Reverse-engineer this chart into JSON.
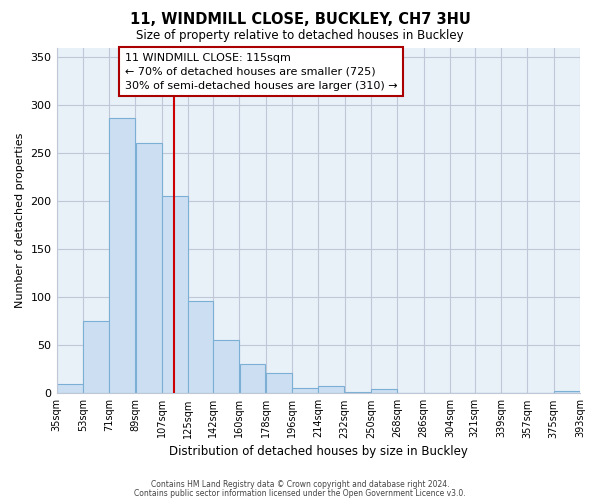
{
  "title": "11, WINDMILL CLOSE, BUCKLEY, CH7 3HU",
  "subtitle": "Size of property relative to detached houses in Buckley",
  "xlabel": "Distribution of detached houses by size in Buckley",
  "ylabel": "Number of detached properties",
  "bar_edges": [
    35,
    53,
    71,
    89,
    107,
    125,
    142,
    160,
    178,
    196,
    214,
    232,
    250,
    268,
    286,
    304,
    321,
    339,
    357,
    375,
    393
  ],
  "bar_values": [
    10,
    75,
    287,
    261,
    205,
    96,
    55,
    31,
    21,
    6,
    8,
    1,
    4,
    0,
    0,
    0,
    0,
    0,
    0,
    2
  ],
  "bar_color": "#ccdff2",
  "bar_edge_color": "#7bafd4",
  "plot_bg_color": "#e8f0f8",
  "vline_x": 115,
  "vline_color": "#cc0000",
  "ylim": [
    0,
    360
  ],
  "yticks": [
    0,
    50,
    100,
    150,
    200,
    250,
    300,
    350
  ],
  "tick_labels": [
    "35sqm",
    "53sqm",
    "71sqm",
    "89sqm",
    "107sqm",
    "125sqm",
    "142sqm",
    "160sqm",
    "178sqm",
    "196sqm",
    "214sqm",
    "232sqm",
    "250sqm",
    "268sqm",
    "286sqm",
    "304sqm",
    "321sqm",
    "339sqm",
    "357sqm",
    "375sqm",
    "393sqm"
  ],
  "annotation_title": "11 WINDMILL CLOSE: 115sqm",
  "annotation_line1": "← 70% of detached houses are smaller (725)",
  "annotation_line2": "30% of semi-detached houses are larger (310) →",
  "footer1": "Contains HM Land Registry data © Crown copyright and database right 2024.",
  "footer2": "Contains public sector information licensed under the Open Government Licence v3.0.",
  "bg_color": "#ffffff",
  "grid_color": "#c0c8d8",
  "ann_box_edge_color": "#aa0000",
  "ann_box_facecolor": "#ffffff"
}
